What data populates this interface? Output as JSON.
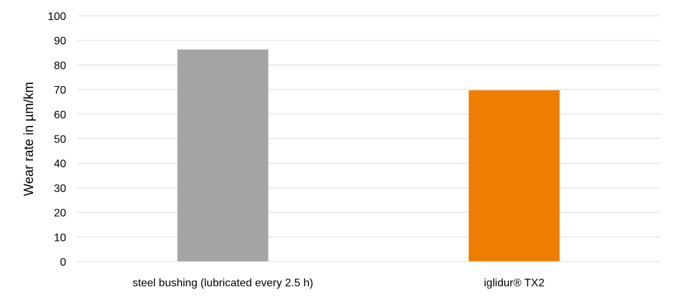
{
  "chart_data": {
    "type": "bar",
    "title": "",
    "xlabel": "",
    "ylabel": "Wear rate in µm/km",
    "categories": [
      "steel bushing (lubricated every 2.5 h)",
      "iglidur® TX2"
    ],
    "values": [
      86.3,
      69.7
    ],
    "bar_colors": [
      "#a5a5a5",
      "#ed7d03"
    ],
    "ylim": [
      0,
      100
    ],
    "yticks": [
      0,
      10,
      20,
      30,
      40,
      50,
      60,
      70,
      80,
      90,
      100
    ],
    "grid": true,
    "grid_color": "#d9d9d9",
    "legend": "none"
  }
}
